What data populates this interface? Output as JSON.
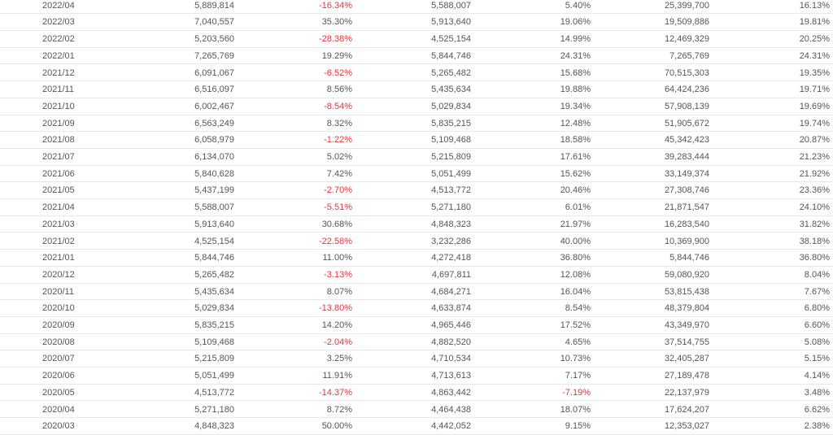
{
  "table": {
    "rows": [
      [
        "2022/04",
        "5,889,814",
        "-16.34%",
        "5,588,007",
        "5.40%",
        "25,399,700",
        "16.13%"
      ],
      [
        "2022/03",
        "7,040,557",
        "35.30%",
        "5,913,640",
        "19.06%",
        "19,509,886",
        "19.81%"
      ],
      [
        "2022/02",
        "5,203,560",
        "-28.38%",
        "4,525,154",
        "14.99%",
        "12,469,329",
        "20.25%"
      ],
      [
        "2022/01",
        "7,265,769",
        "19.29%",
        "5,844,746",
        "24.31%",
        "7,265,769",
        "24.31%"
      ],
      [
        "2021/12",
        "6,091,067",
        "-6.52%",
        "5,265,482",
        "15.68%",
        "70,515,303",
        "19.35%"
      ],
      [
        "2021/11",
        "6,516,097",
        "8.56%",
        "5,435,634",
        "19.88%",
        "64,424,236",
        "19.71%"
      ],
      [
        "2021/10",
        "6,002,467",
        "-8.54%",
        "5,029,834",
        "19.34%",
        "57,908,139",
        "19.69%"
      ],
      [
        "2021/09",
        "6,563,249",
        "8.32%",
        "5,835,215",
        "12.48%",
        "51,905,672",
        "19.74%"
      ],
      [
        "2021/08",
        "6,058,979",
        "-1.22%",
        "5,109,468",
        "18.58%",
        "45,342,423",
        "20.87%"
      ],
      [
        "2021/07",
        "6,134,070",
        "5.02%",
        "5,215,809",
        "17.61%",
        "39,283,444",
        "21.23%"
      ],
      [
        "2021/06",
        "5,840,628",
        "7.42%",
        "5,051,499",
        "15.62%",
        "33,149,374",
        "21.92%"
      ],
      [
        "2021/05",
        "5,437,199",
        "-2.70%",
        "4,513,772",
        "20.46%",
        "27,308,746",
        "23.36%"
      ],
      [
        "2021/04",
        "5,588,007",
        "-5.51%",
        "5,271,180",
        "6.01%",
        "21,871,547",
        "24.10%"
      ],
      [
        "2021/03",
        "5,913,640",
        "30.68%",
        "4,848,323",
        "21.97%",
        "16,283,540",
        "31.82%"
      ],
      [
        "2021/02",
        "4,525,154",
        "-22.58%",
        "3,232,286",
        "40.00%",
        "10,369,900",
        "38.18%"
      ],
      [
        "2021/01",
        "5,844,746",
        "11.00%",
        "4,272,418",
        "36.80%",
        "5,844,746",
        "36.80%"
      ],
      [
        "2020/12",
        "5,265,482",
        "-3.13%",
        "4,697,811",
        "12.08%",
        "59,080,920",
        "8.04%"
      ],
      [
        "2020/11",
        "5,435,634",
        "8.07%",
        "4,684,271",
        "16.04%",
        "53,815,438",
        "7.67%"
      ],
      [
        "2020/10",
        "5,029,834",
        "-13.80%",
        "4,633,874",
        "8.54%",
        "48,379,804",
        "6.80%"
      ],
      [
        "2020/09",
        "5,835,215",
        "14.20%",
        "4,965,446",
        "17.52%",
        "43,349,970",
        "6.60%"
      ],
      [
        "2020/08",
        "5,109,468",
        "-2.04%",
        "4,882,520",
        "4.65%",
        "37,514,755",
        "5.08%"
      ],
      [
        "2020/07",
        "5,215,809",
        "3.25%",
        "4,710,534",
        "10.73%",
        "32,405,287",
        "5.15%"
      ],
      [
        "2020/06",
        "5,051,499",
        "11.91%",
        "4,713,613",
        "7.17%",
        "27,189,478",
        "4.14%"
      ],
      [
        "2020/05",
        "4,513,772",
        "-14.37%",
        "4,863,442",
        "-7.19%",
        "22,137,979",
        "3.48%"
      ],
      [
        "2020/04",
        "5,271,180",
        "8.72%",
        "4,464,438",
        "18.07%",
        "17,624,207",
        "6.62%"
      ],
      [
        "2020/03",
        "4,848,323",
        "50.00%",
        "4,442,052",
        "9.15%",
        "12,353,027",
        "2.38%"
      ]
    ]
  }
}
